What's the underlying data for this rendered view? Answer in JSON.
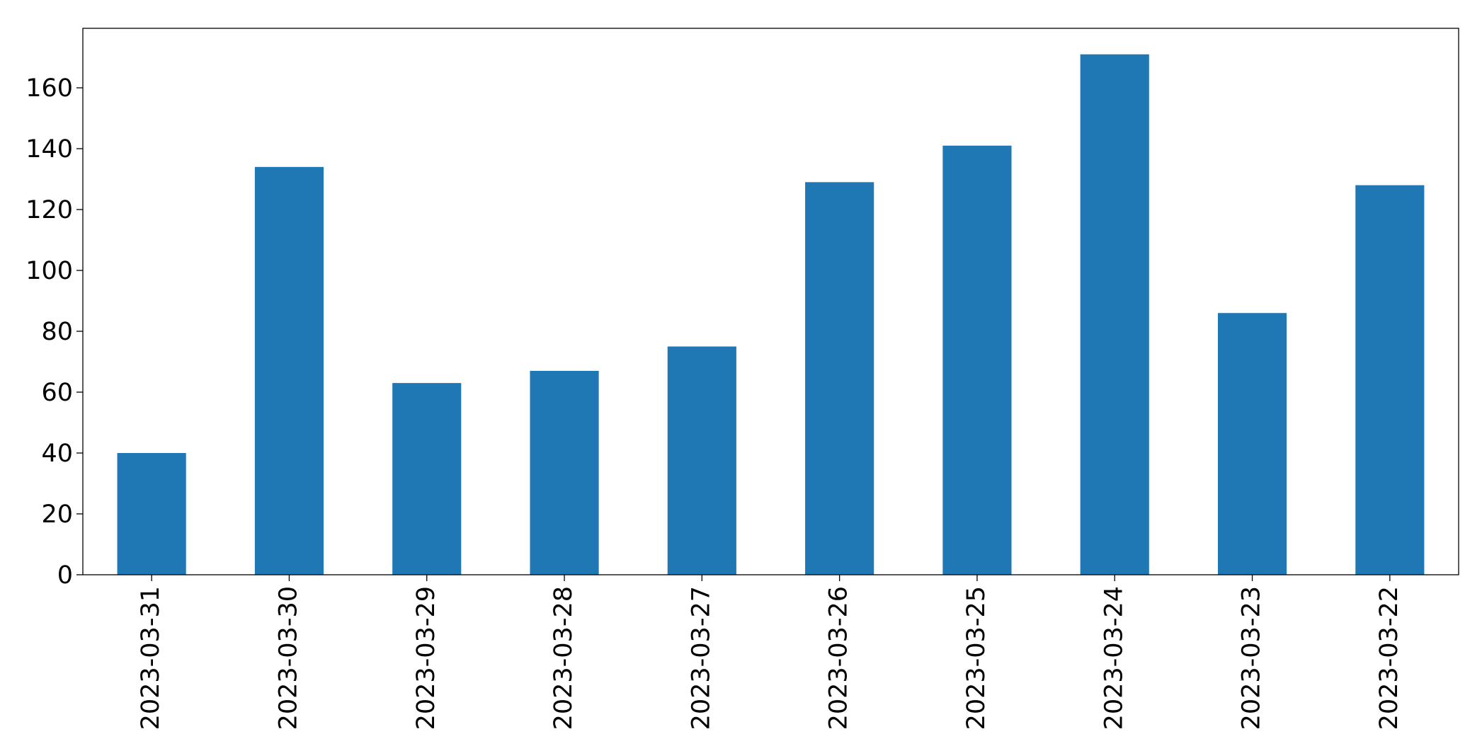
{
  "chart_data": {
    "type": "bar",
    "title": "",
    "xlabel": "",
    "ylabel": "",
    "categories": [
      "2023-03-31",
      "2023-03-30",
      "2023-03-29",
      "2023-03-28",
      "2023-03-27",
      "2023-03-26",
      "2023-03-25",
      "2023-03-24",
      "2023-03-23",
      "2023-03-22"
    ],
    "values": [
      40,
      134,
      63,
      67,
      75,
      129,
      141,
      171,
      86,
      128
    ],
    "ylim": [
      0,
      179.55
    ],
    "yticks": [
      0,
      20,
      40,
      60,
      80,
      100,
      120,
      140,
      160
    ],
    "grid": false,
    "legend": "none",
    "bar_color": "#1f77b4"
  }
}
